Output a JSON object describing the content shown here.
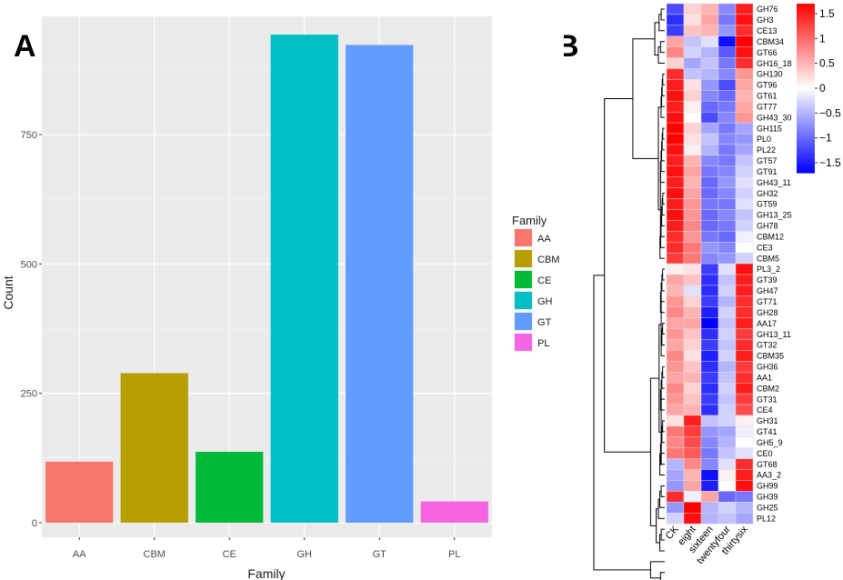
{
  "chart_data": [
    {
      "panel": "A",
      "type": "bar",
      "panel_label": "A",
      "categories": [
        "AA",
        "CBM",
        "CE",
        "GH",
        "GT",
        "PL"
      ],
      "values": [
        118,
        289,
        137,
        943,
        923,
        41
      ],
      "colors": [
        "#F8766D",
        "#B79F00",
        "#00BA38",
        "#00BFC4",
        "#619CFF",
        "#F564E3"
      ],
      "xlabel": "Family",
      "ylabel": "Count",
      "ylim": [
        0,
        1000
      ],
      "yticks": [
        0,
        250,
        500,
        750
      ],
      "ytick_labels": [
        "0",
        "250",
        "500",
        "750"
      ],
      "legend_title": "Family",
      "legend_position": "right",
      "legend_entries": [
        "AA",
        "CBM",
        "CE",
        "GH",
        "GT",
        "PL"
      ]
    },
    {
      "panel": "B",
      "type": "heatmap",
      "panel_label": "B",
      "columns": [
        "CK",
        "eight",
        "sixteen",
        "twentyfour",
        "thirtysix"
      ],
      "rows": [
        "GH76",
        "GH3",
        "CE13",
        "CBM34",
        "GT66",
        "GH16_18",
        "GH130",
        "GT96",
        "GT61",
        "GT77",
        "GH43_30",
        "GH115",
        "PL0",
        "PL22",
        "GT57",
        "GT91",
        "GH43_11",
        "GH32",
        "GT59",
        "GH13_25",
        "GH78",
        "CBM12",
        "CE3",
        "CBM5",
        "PL3_2",
        "GT39",
        "GH47",
        "GT71",
        "GH28",
        "AA17",
        "GH13_11",
        "GT32",
        "CBM35",
        "GH36",
        "AA1",
        "CBM2",
        "GT31",
        "CE4",
        "GH31",
        "GT41",
        "GH5_9",
        "CE0",
        "GT68",
        "AA3_2",
        "GH99",
        "GH39",
        "GH25",
        "PL12"
      ],
      "values": [
        [
          -1.2,
          0.3,
          0.5,
          -0.8,
          1.5
        ],
        [
          -1.4,
          0.2,
          0.6,
          -0.9,
          1.6
        ],
        [
          -1.3,
          0.4,
          0.5,
          -0.7,
          1.4
        ],
        [
          0.6,
          -0.4,
          -0.2,
          -1.6,
          1.7
        ],
        [
          0.8,
          -0.3,
          -0.5,
          -1.1,
          1.6
        ],
        [
          0.3,
          -0.6,
          -0.4,
          -0.9,
          1.4
        ],
        [
          1.4,
          -0.4,
          -0.5,
          -0.8,
          0.7
        ],
        [
          1.5,
          0.2,
          -0.7,
          -1.2,
          0.6
        ],
        [
          1.6,
          0.3,
          -0.8,
          -1.0,
          0.5
        ],
        [
          1.5,
          0.1,
          -1.0,
          -0.9,
          0.6
        ],
        [
          1.6,
          0.0,
          -1.2,
          -0.8,
          0.7
        ],
        [
          1.7,
          0.3,
          -0.6,
          -0.9,
          -0.6
        ],
        [
          1.7,
          0.2,
          -0.4,
          -0.8,
          -0.7
        ],
        [
          1.6,
          0.1,
          -0.5,
          -0.9,
          -0.6
        ],
        [
          1.5,
          0.5,
          -0.8,
          -0.9,
          -0.4
        ],
        [
          1.6,
          0.6,
          -0.9,
          -0.8,
          -0.3
        ],
        [
          1.5,
          0.5,
          -1.0,
          -0.7,
          -0.2
        ],
        [
          1.6,
          0.6,
          -1.0,
          -0.8,
          -0.3
        ],
        [
          1.5,
          0.7,
          -0.9,
          -0.9,
          -0.2
        ],
        [
          1.6,
          0.7,
          -1.0,
          -0.8,
          -0.4
        ],
        [
          1.5,
          0.8,
          -1.0,
          -0.9,
          -0.3
        ],
        [
          1.4,
          0.7,
          -0.9,
          -1.0,
          -0.1
        ],
        [
          1.4,
          0.9,
          -0.7,
          -0.8,
          0.0
        ],
        [
          1.3,
          0.9,
          -0.8,
          -0.7,
          -0.3
        ],
        [
          0.1,
          0.2,
          -1.3,
          -0.2,
          1.6
        ],
        [
          0.6,
          0.4,
          -1.4,
          -0.4,
          1.5
        ],
        [
          0.5,
          -0.2,
          -1.4,
          -0.3,
          1.5
        ],
        [
          0.7,
          0.3,
          -1.3,
          -0.5,
          1.4
        ],
        [
          0.8,
          0.5,
          -1.5,
          -0.3,
          1.4
        ],
        [
          0.6,
          0.6,
          -1.7,
          -0.4,
          1.5
        ],
        [
          0.7,
          0.4,
          -1.4,
          -0.3,
          1.3
        ],
        [
          0.6,
          0.3,
          -1.3,
          -0.4,
          1.4
        ],
        [
          0.8,
          0.2,
          -1.5,
          -0.3,
          1.5
        ],
        [
          0.7,
          0.4,
          -1.4,
          -0.5,
          1.3
        ],
        [
          0.6,
          0.5,
          -1.3,
          -0.4,
          1.4
        ],
        [
          0.8,
          0.3,
          -1.4,
          -0.3,
          1.5
        ],
        [
          0.7,
          0.4,
          -1.3,
          -0.4,
          1.3
        ],
        [
          0.6,
          0.5,
          -1.4,
          -0.3,
          1.2
        ],
        [
          0.2,
          1.5,
          -0.4,
          -0.3,
          0.1
        ],
        [
          0.9,
          1.3,
          -0.7,
          -0.6,
          -0.1
        ],
        [
          0.8,
          1.2,
          -0.8,
          -0.5,
          0.0
        ],
        [
          0.9,
          1.1,
          -0.9,
          -0.4,
          -0.2
        ],
        [
          -0.5,
          0.8,
          -0.8,
          -0.2,
          1.4
        ],
        [
          -0.6,
          0.5,
          -1.6,
          0.1,
          1.5
        ],
        [
          -0.7,
          0.6,
          -1.5,
          0.0,
          1.6
        ],
        [
          1.4,
          -0.1,
          0.6,
          -1.0,
          -0.9
        ],
        [
          -0.7,
          1.7,
          -0.5,
          -0.3,
          -0.5
        ],
        [
          -0.3,
          1.6,
          -0.5,
          -0.4,
          -0.6
        ]
      ],
      "colorbar_ticks": [
        1.5,
        1,
        0.5,
        0,
        -0.5,
        -1,
        -1.5
      ],
      "colorbar_labels": [
        "1.5",
        "1",
        "0.5",
        "0",
        "−0.5",
        "−1",
        "−1.5"
      ],
      "color_range": [
        "#0000FF",
        "#FFFFFF",
        "#FF0000"
      ],
      "value_range": [
        -1.7,
        1.7
      ]
    }
  ]
}
